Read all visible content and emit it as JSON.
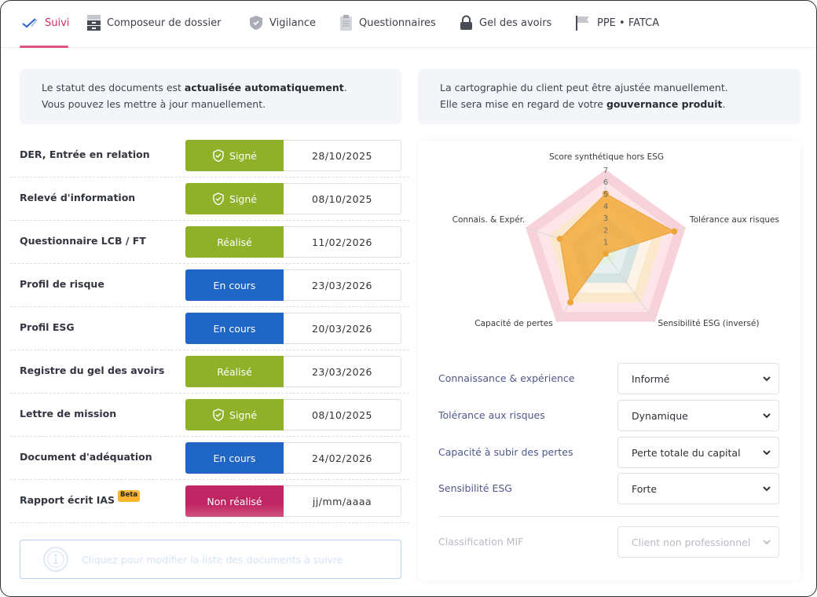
{
  "nav": {
    "tabs": [
      {
        "label": "Suivi",
        "icon": "check-icon",
        "active": true
      },
      {
        "label": "Composeur de dossier",
        "icon": "cabinet-icon"
      },
      {
        "label": "Vigilance",
        "icon": "shield-icon"
      },
      {
        "label": "Questionnaires",
        "icon": "clipboard-icon"
      },
      {
        "label": "Gel des avoirs",
        "icon": "lock-icon"
      },
      {
        "label": "PPE • FATCA",
        "icon": "flag-icon"
      }
    ]
  },
  "left": {
    "info_line1_pre": "Le statut des documents est ",
    "info_line1_bold": "actualisée automatiquement",
    "info_line1_post": ".",
    "info_line2": "Vous pouvez les mettre à jour manuellement.",
    "documents": [
      {
        "label": "DER, Entrée en relation",
        "status": "Signé",
        "signed": true,
        "color": "#8fb12a",
        "date": "28/10/2025"
      },
      {
        "label": "Relevé d'information",
        "status": "Signé",
        "signed": true,
        "color": "#8fb12a",
        "date": "08/10/2025"
      },
      {
        "label": "Questionnaire LCB / FT",
        "status": "Réalisé",
        "color": "#8fb12a",
        "date": "11/02/2026"
      },
      {
        "label": "Profil de risque",
        "status": "En cours",
        "color": "#2066c4",
        "date": "23/03/2026"
      },
      {
        "label": "Profil ESG",
        "status": "En cours",
        "color": "#2066c4",
        "date": "20/03/2026"
      },
      {
        "label": "Registre du gel des avoirs",
        "status": "Réalisé",
        "color": "#8fb12a",
        "date": "23/03/2026"
      },
      {
        "label": "Lettre de mission",
        "status": "Signé",
        "signed": true,
        "color": "#8fb12a",
        "date": "08/10/2025"
      },
      {
        "label": "Document d'adéquation",
        "status": "En cours",
        "color": "#2066c4",
        "date": "24/02/2026"
      },
      {
        "label": "Rapport écrit IAS",
        "badge": "Beta",
        "status": "Non réalisé",
        "color": "#c02563",
        "date_placeholder": "jj/mm/aaaa"
      }
    ],
    "edit_label": "Cliquez pour modifier la liste des documents à suivre"
  },
  "right": {
    "info_line1": "La cartographie du client peut être ajustée manuellement.",
    "info_line2_pre": "Elle sera mise en regard de votre ",
    "info_line2_bold": "gouvernance produit",
    "info_line2_post": ".",
    "fields": [
      {
        "label": "Connaissance & expérience",
        "value": "Informé"
      },
      {
        "label": "Tolérance aux risques",
        "value": "Dynamique"
      },
      {
        "label": "Capacité à subir des pertes",
        "value": "Perte totale du capital"
      },
      {
        "label": "Sensibilité ESG",
        "value": "Forte"
      }
    ],
    "classification": {
      "label": "Classification MIF",
      "value": "Client non professionnel",
      "disabled": true
    }
  },
  "chart_data": {
    "type": "radar",
    "axes": [
      "Score synthétique hors ESG",
      "Tolérance aux risques",
      "Sensibilité ESG (inversé)",
      "Capacité de pertes",
      "Connais. & Expér."
    ],
    "values": [
      5,
      6,
      0,
      5,
      4
    ],
    "rlim": [
      0,
      7
    ],
    "ticks": [
      "1",
      "2",
      "3",
      "4",
      "5",
      "6",
      "7"
    ],
    "series_color": "#f2a93b",
    "band_colors": [
      "#e2f2de",
      "#e7efef",
      "#d5e3e3",
      "#fdf3e6",
      "#fbe7cc",
      "#fde5ea",
      "#f8d2da"
    ]
  }
}
